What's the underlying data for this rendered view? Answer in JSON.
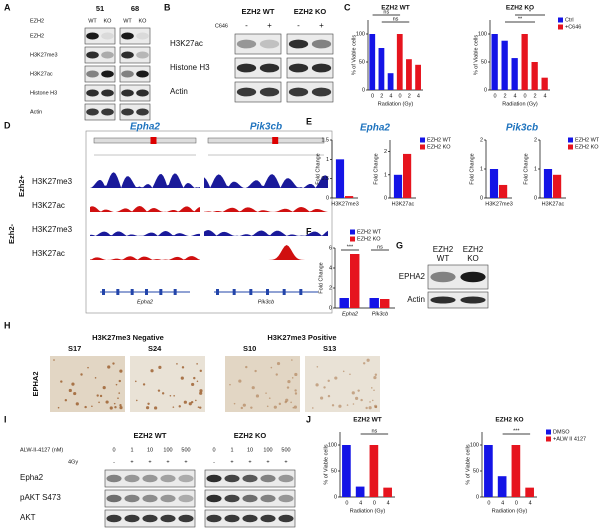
{
  "panel_labels": [
    "A",
    "B",
    "C",
    "D",
    "E",
    "F",
    "G",
    "H",
    "I",
    "J"
  ],
  "blot_a": {
    "gene": "EZH2",
    "groups": [
      "51",
      "68"
    ],
    "lanes": [
      "WT",
      "KO",
      "WT",
      "KO"
    ],
    "rows": [
      "EZH2",
      "H3K27me3",
      "H3K27ac",
      "Histone H3",
      "Actin"
    ]
  },
  "blot_b": {
    "treatment": "C646",
    "groups": [
      "EZH2 WT",
      "EZH2 KO"
    ],
    "lanes": [
      "-",
      "+",
      "-",
      "+"
    ],
    "rows": [
      "H3K27ac",
      "Histone H3",
      "Actin"
    ]
  },
  "browser_d": {
    "genes": [
      "Epha2",
      "Pik3cb"
    ],
    "groups": [
      "Ezh2+",
      "Ezh2-"
    ],
    "tracks": [
      "H3K27me3",
      "H3K27ac",
      "H3K27me3",
      "H3K27ac"
    ],
    "refseq": [
      "Epha2",
      "Pik3cb"
    ]
  },
  "blot_g": {
    "genes": [
      "EZH2",
      "EZH2"
    ],
    "lanes": [
      "WT",
      "KO"
    ],
    "rows": [
      "EPHA2",
      "Actin"
    ]
  },
  "histology_h": {
    "groups": [
      "H3K27me3 Negative",
      "H3K27me3 Positive"
    ],
    "samples": [
      "S17",
      "S24",
      "S10",
      "S13"
    ],
    "stain": "EPHA2"
  },
  "blot_i": {
    "treatment": "ALW-II-4127 (nM)",
    "doses": [
      0,
      1,
      10,
      100,
      500,
      0,
      1,
      10,
      100,
      500
    ],
    "radiation": "4Gy",
    "signs": [
      "-",
      "+",
      "+",
      "+",
      "+",
      "-",
      "+",
      "+",
      "+",
      "+"
    ],
    "groups": [
      "EZH2 WT",
      "EZH2 KO"
    ],
    "rows": [
      "Epha2",
      "pAKT S473",
      "AKT"
    ]
  },
  "chart_data": [
    {
      "type": "bar",
      "title": "EZH2 WT",
      "ylabel": "% of Viable cells",
      "xlabel": "Radiation (Gy)",
      "categories": [
        0,
        2,
        4,
        0,
        2,
        4
      ],
      "series": [
        {
          "color": "#1414e6",
          "values": [
            100,
            75,
            30,
            null,
            null,
            null
          ]
        },
        {
          "color": "#e6141e",
          "values": [
            null,
            null,
            null,
            100,
            55,
            45
          ]
        }
      ],
      "ylim": [
        0,
        125
      ],
      "yticks": [
        0,
        50,
        100
      ],
      "annotations": [
        "ns",
        "ns"
      ],
      "legend": false
    },
    {
      "type": "bar",
      "title": "EZH2 KO",
      "ylabel": "% of Viable cells",
      "xlabel": "Radiation (Gy)",
      "categories": [
        0,
        2,
        4,
        0,
        2,
        4
      ],
      "series": [
        {
          "name": "Ctrl",
          "color": "#1414e6",
          "values": [
            100,
            88,
            57,
            null,
            null,
            null
          ]
        },
        {
          "name": "+C646",
          "color": "#e6141e",
          "values": [
            null,
            null,
            null,
            100,
            50,
            22
          ]
        }
      ],
      "ylim": [
        0,
        125
      ],
      "yticks": [
        0,
        50,
        100
      ],
      "annotations": [
        "**",
        "*"
      ],
      "legend": true
    },
    {
      "type": "bar",
      "title": "Epha2",
      "ylabel": "Fold Change",
      "categories": [
        "H3K27me3"
      ],
      "series": [
        {
          "color": "#1414e6",
          "values": [
            1
          ]
        },
        {
          "color": "#e6141e",
          "values": [
            0.05
          ]
        }
      ],
      "ylim": [
        0,
        1.5
      ],
      "yticks": [
        0,
        0.5,
        1,
        1.5
      ],
      "legend": false
    },
    {
      "type": "bar",
      "ylabel": "Fold Change",
      "categories": [
        "H3K27ac"
      ],
      "series": [
        {
          "name": "EZH2 WT",
          "color": "#1414e6",
          "values": [
            1
          ]
        },
        {
          "name": "EZH2 KO",
          "color": "#e6141e",
          "values": [
            1.9
          ]
        }
      ],
      "ylim": [
        0,
        2.5
      ],
      "yticks": [
        0,
        1,
        2
      ],
      "legend": true
    },
    {
      "type": "bar",
      "title": "Pik3cb",
      "ylabel": "Fold Change",
      "categories": [
        "H3K27me3"
      ],
      "series": [
        {
          "color": "#1414e6",
          "values": [
            1
          ]
        },
        {
          "color": "#e6141e",
          "values": [
            0.45
          ]
        }
      ],
      "ylim": [
        0,
        2
      ],
      "yticks": [
        0,
        1,
        2
      ],
      "legend": false
    },
    {
      "type": "bar",
      "ylabel": "Fold Change",
      "categories": [
        "H3K27ac"
      ],
      "series": [
        {
          "name": "EZH2 WT",
          "color": "#1414e6",
          "values": [
            1
          ]
        },
        {
          "name": "EZH2 KO",
          "color": "#e6141e",
          "values": [
            0.8
          ]
        }
      ],
      "ylim": [
        0,
        2
      ],
      "yticks": [
        0,
        1,
        2
      ],
      "legend": true
    },
    {
      "type": "bar",
      "ylabel": "Fold Change",
      "categories": [
        "Epha2",
        "Pik3cb"
      ],
      "series": [
        {
          "name": "EZH2 WT",
          "color": "#1414e6",
          "values": [
            1,
            1
          ]
        },
        {
          "name": "EZH2 KO",
          "color": "#e6141e",
          "values": [
            5.4,
            0.9
          ]
        }
      ],
      "ylim": [
        0,
        6
      ],
      "yticks": [
        0,
        2,
        4,
        6
      ],
      "annotations": [
        "***",
        "ns"
      ],
      "legend": true
    },
    {
      "type": "bar",
      "title": "EZH2 WT",
      "ylabel": "% of Viable cells",
      "xlabel": "Radiation (Gy)",
      "categories": [
        0,
        4,
        0,
        4
      ],
      "series": [
        {
          "color": "#1414e6",
          "values": [
            100,
            20,
            null,
            null
          ]
        },
        {
          "color": "#e6141e",
          "values": [
            null,
            null,
            100,
            18
          ]
        }
      ],
      "ylim": [
        0,
        125
      ],
      "yticks": [
        0,
        50,
        100
      ],
      "annotations": [
        "ns"
      ],
      "legend": false
    },
    {
      "type": "bar",
      "title": "EZH2 KO",
      "ylabel": "% of Viable cells",
      "xlabel": "Radiation (Gy)",
      "categories": [
        0,
        4,
        0,
        4
      ],
      "series": [
        {
          "name": "DMSO",
          "color": "#1414e6",
          "values": [
            100,
            40,
            null,
            null
          ]
        },
        {
          "name": "+ALW II 4127",
          "color": "#e6141e",
          "values": [
            null,
            null,
            100,
            18
          ]
        }
      ],
      "ylim": [
        0,
        125
      ],
      "yticks": [
        0,
        50,
        100
      ],
      "annotations": [
        "***"
      ],
      "legend": true
    }
  ]
}
